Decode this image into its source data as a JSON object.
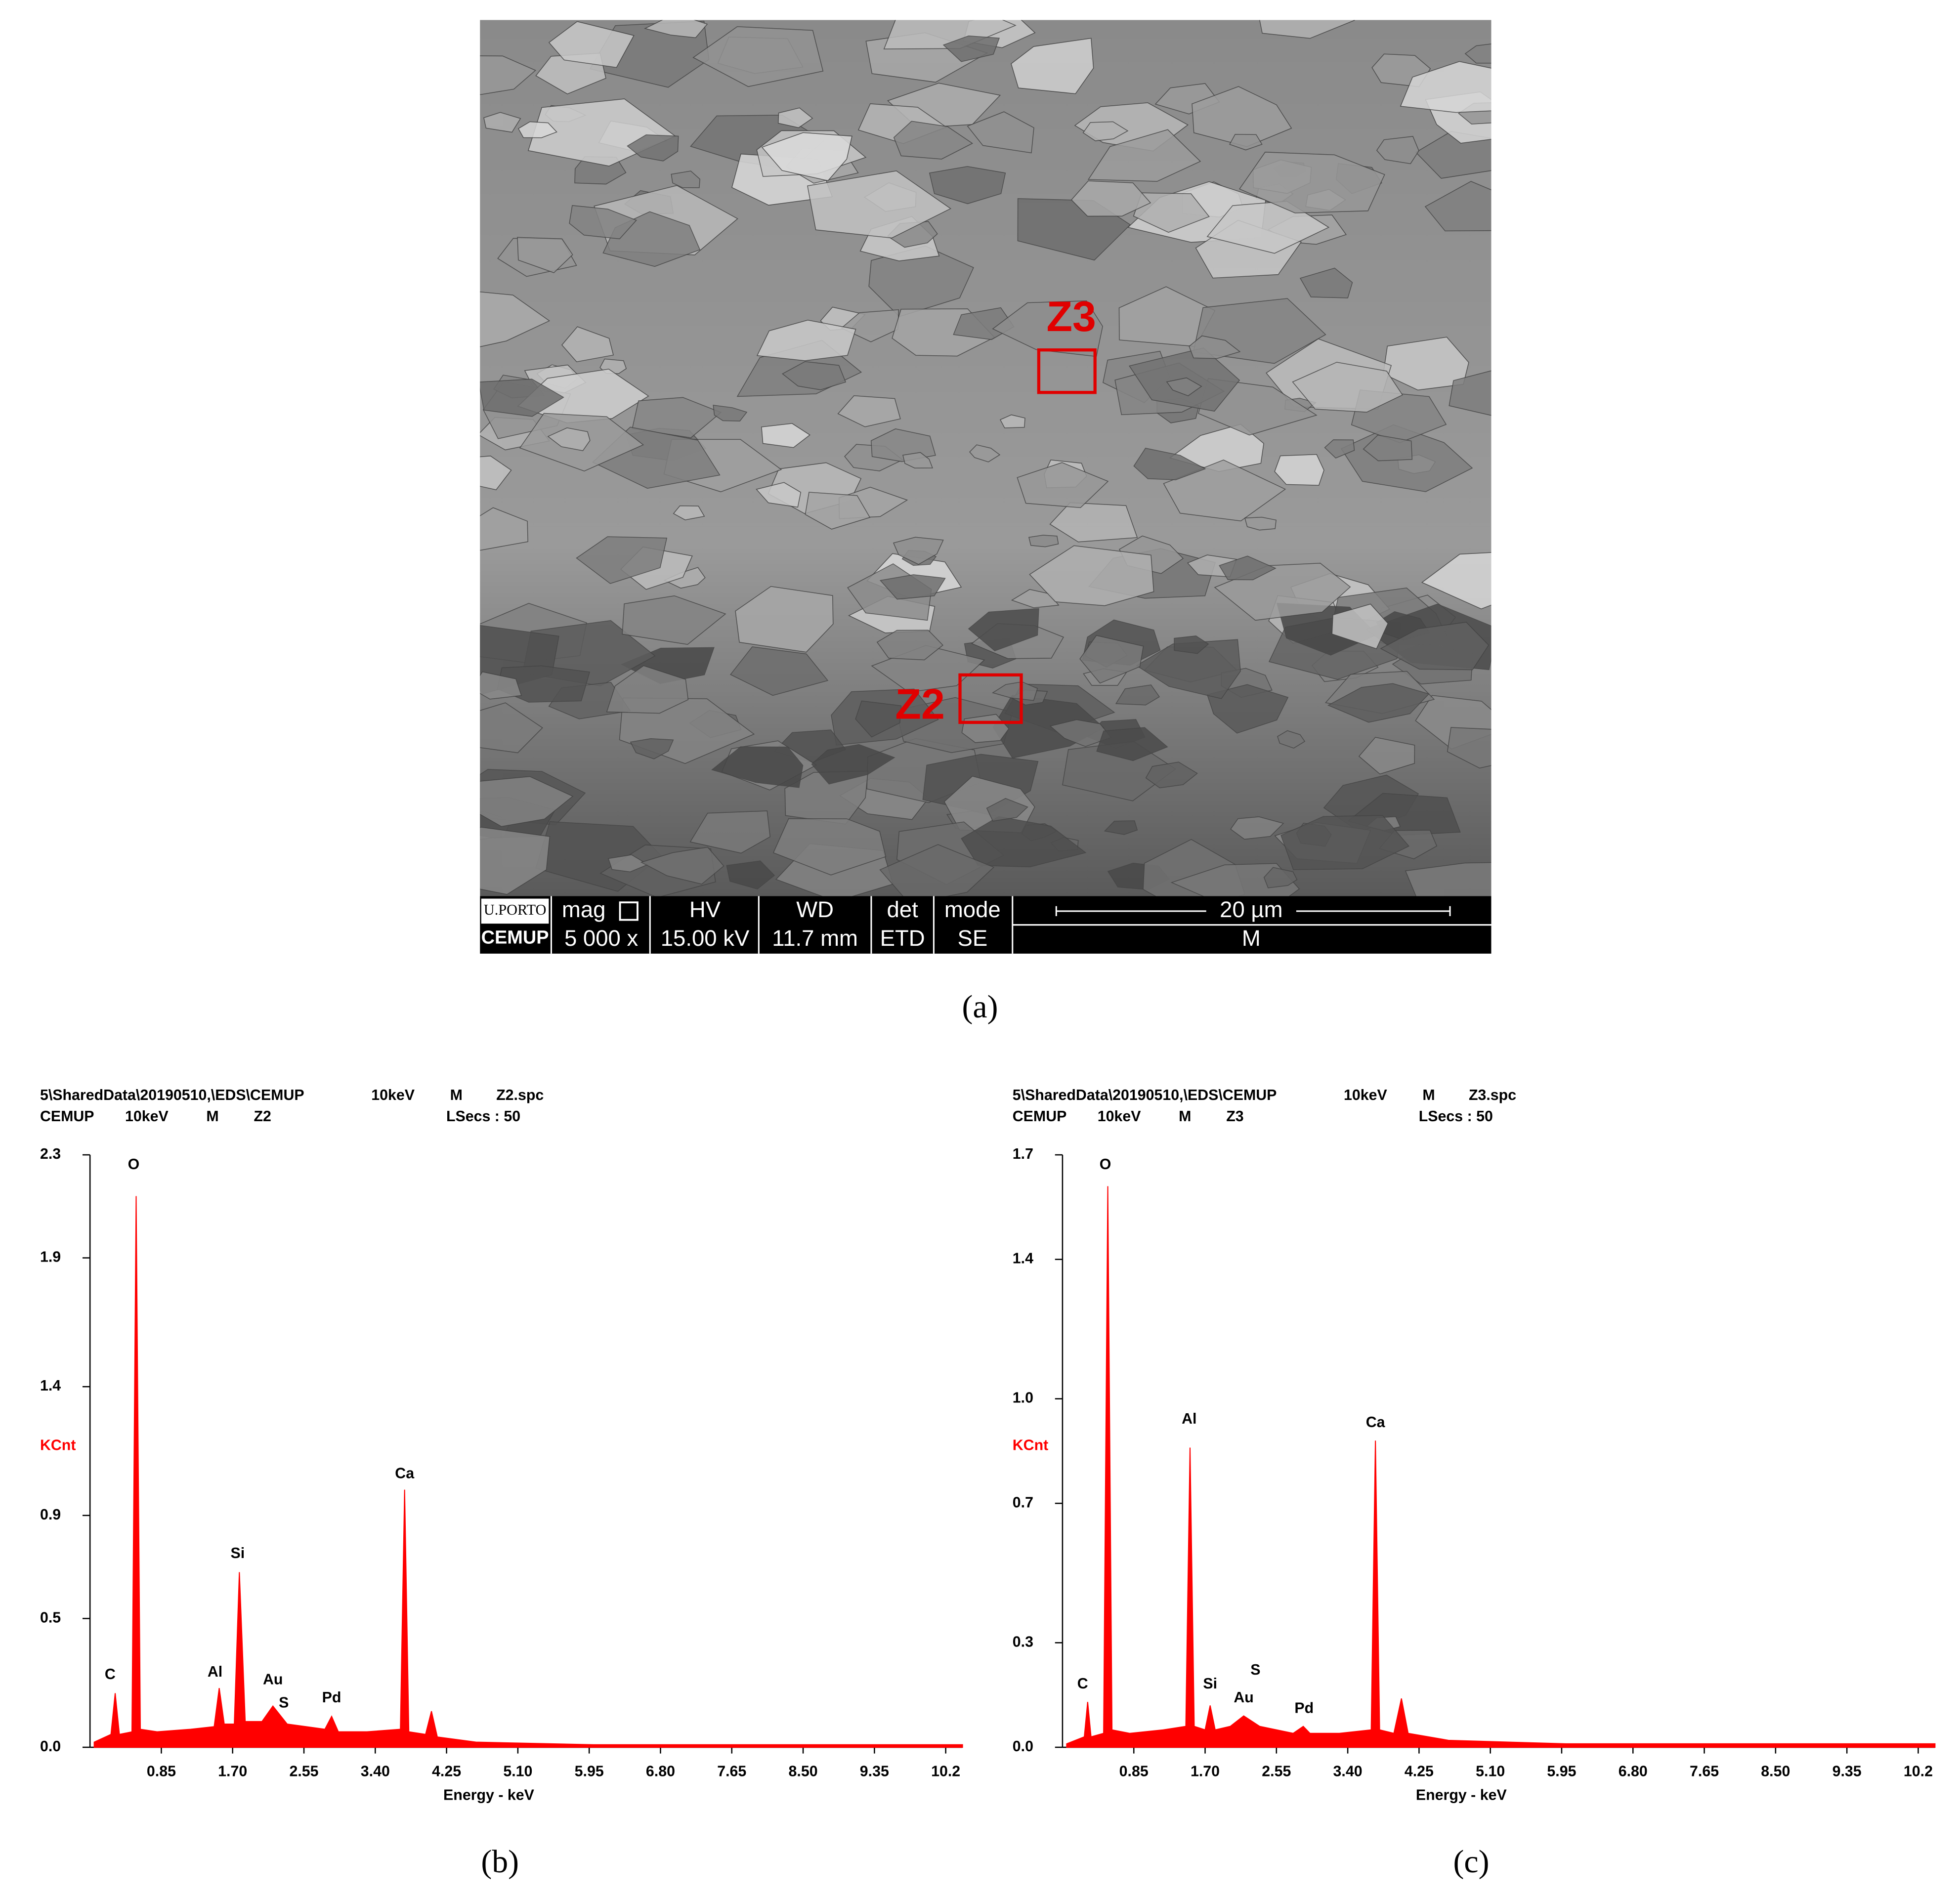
{
  "figure": {
    "panel_label": "(a)",
    "zones": [
      "Z3",
      "Z2"
    ],
    "infobar": {
      "logo_top": "U.PORTO",
      "logo_bottom": "CEMUP",
      "mag_label": "mag",
      "mag_value": "5 000 x",
      "hv_label": "HV",
      "hv_value": "15.00 kV",
      "wd_label": "WD",
      "wd_value": "11.7 mm",
      "det_label": "det",
      "det_value": "ETD",
      "mode_label": "mode",
      "mode_value": "SE",
      "scale": "20 µm",
      "scale_bottom": "M"
    }
  },
  "chart_data": [
    {
      "type": "area",
      "panel_label": "(b)",
      "color": "#ff0000",
      "header": [
        [
          "5\\SharedData\\20190510,\\EDS\\CEMUP",
          "10keV",
          "M",
          "Z2.spc"
        ],
        [
          "CEMUP",
          "10keV",
          "M",
          "Z2",
          "LSecs : 50"
        ]
      ],
      "y_label": "KCnt",
      "x_label": "Energy - keV",
      "xlim": [
        0,
        10.4
      ],
      "xticks": [
        0.85,
        {
          "value": 1.7,
          "label": "1.70"
        },
        2.55,
        {
          "value": 3.4,
          "label": "3.40"
        },
        4.25,
        {
          "value": 5.1,
          "label": "5.10"
        },
        5.95,
        {
          "value": 6.8,
          "label": "6.80"
        },
        7.65,
        {
          "value": 8.5,
          "label": "8.50"
        },
        9.35,
        10.2
      ],
      "ylim": [
        0,
        2.3
      ],
      "yticks": [
        {
          "value": 0,
          "label": "0.0"
        },
        0.5,
        0.9,
        1.4,
        1.9,
        2.3
      ],
      "x": [
        0.05,
        0.25,
        0.3,
        0.35,
        0.5,
        0.55,
        0.6,
        0.8,
        1.2,
        1.48,
        1.54,
        1.6,
        1.72,
        1.78,
        1.85,
        2.05,
        2.18,
        2.35,
        2.8,
        2.88,
        2.96,
        3.3,
        3.7,
        3.75,
        3.8,
        4.0,
        4.07,
        4.14,
        4.6,
        6,
        8,
        10.4
      ],
      "values": [
        0.02,
        0.05,
        0.21,
        0.05,
        0.06,
        2.14,
        0.07,
        0.06,
        0.07,
        0.08,
        0.23,
        0.09,
        0.09,
        0.68,
        0.1,
        0.1,
        0.16,
        0.09,
        0.07,
        0.12,
        0.06,
        0.06,
        0.07,
        1.0,
        0.06,
        0.05,
        0.14,
        0.04,
        0.02,
        0.01,
        0.01,
        0.01
      ],
      "annotations": [
        {
          "text": "C",
          "x": 0.24,
          "y": 0.28
        },
        {
          "text": "O",
          "x": 0.52,
          "y": 2.26
        },
        {
          "text": "Al",
          "x": 1.49,
          "y": 0.29
        },
        {
          "text": "Si",
          "x": 1.76,
          "y": 0.75
        },
        {
          "text": "Au",
          "x": 2.18,
          "y": 0.26
        },
        {
          "text": "S",
          "x": 2.31,
          "y": 0.17
        },
        {
          "text": "Pd",
          "x": 2.88,
          "y": 0.19
        },
        {
          "text": "Ca",
          "x": 3.75,
          "y": 1.06
        }
      ]
    },
    {
      "type": "area",
      "panel_label": "(c)",
      "color": "#ff0000",
      "header": [
        [
          "5\\SharedData\\20190510,\\EDS\\CEMUP",
          "10keV",
          "M",
          "Z3.spc"
        ],
        [
          "CEMUP",
          "10keV",
          "M",
          "Z3",
          "LSecs : 50"
        ]
      ],
      "y_label": "KCnt",
      "x_label": "Energy - keV",
      "xlim": [
        0,
        10.4
      ],
      "xticks": [
        0.85,
        {
          "value": 1.7,
          "label": "1.70"
        },
        2.55,
        {
          "value": 3.4,
          "label": "3.40"
        },
        4.25,
        {
          "value": 5.1,
          "label": "5.10"
        },
        5.95,
        {
          "value": 6.8,
          "label": "6.80"
        },
        7.65,
        {
          "value": 8.5,
          "label": "8.50"
        },
        9.35,
        10.2
      ],
      "ylim": [
        0,
        1.7
      ],
      "yticks": [
        {
          "value": 0,
          "label": "0.0"
        },
        0.3,
        0.7,
        {
          "value": 1,
          "label": "1.0"
        },
        1.4,
        1.7
      ],
      "x": [
        0.05,
        0.26,
        0.3,
        0.34,
        0.49,
        0.54,
        0.59,
        0.8,
        1.2,
        1.47,
        1.52,
        1.57,
        1.7,
        1.76,
        1.82,
        2.0,
        2.16,
        2.35,
        2.75,
        2.87,
        2.95,
        3.3,
        3.68,
        3.73,
        3.78,
        3.95,
        4.04,
        4.12,
        4.6,
        6,
        8,
        10.4
      ],
      "values": [
        0.01,
        0.03,
        0.13,
        0.03,
        0.04,
        1.61,
        0.05,
        0.04,
        0.05,
        0.06,
        0.86,
        0.06,
        0.05,
        0.12,
        0.05,
        0.06,
        0.09,
        0.06,
        0.04,
        0.06,
        0.04,
        0.04,
        0.05,
        0.88,
        0.05,
        0.04,
        0.14,
        0.04,
        0.02,
        0.01,
        0.01,
        0.01
      ],
      "annotations": [
        {
          "text": "C",
          "x": 0.24,
          "y": 0.18
        },
        {
          "text": "O",
          "x": 0.51,
          "y": 1.67
        },
        {
          "text": "Al",
          "x": 1.51,
          "y": 0.94
        },
        {
          "text": "Si",
          "x": 1.76,
          "y": 0.18
        },
        {
          "text": "S",
          "x": 2.3,
          "y": 0.22
        },
        {
          "text": "Au",
          "x": 2.16,
          "y": 0.14
        },
        {
          "text": "Pd",
          "x": 2.88,
          "y": 0.11
        },
        {
          "text": "Ca",
          "x": 3.73,
          "y": 0.93
        }
      ]
    }
  ]
}
